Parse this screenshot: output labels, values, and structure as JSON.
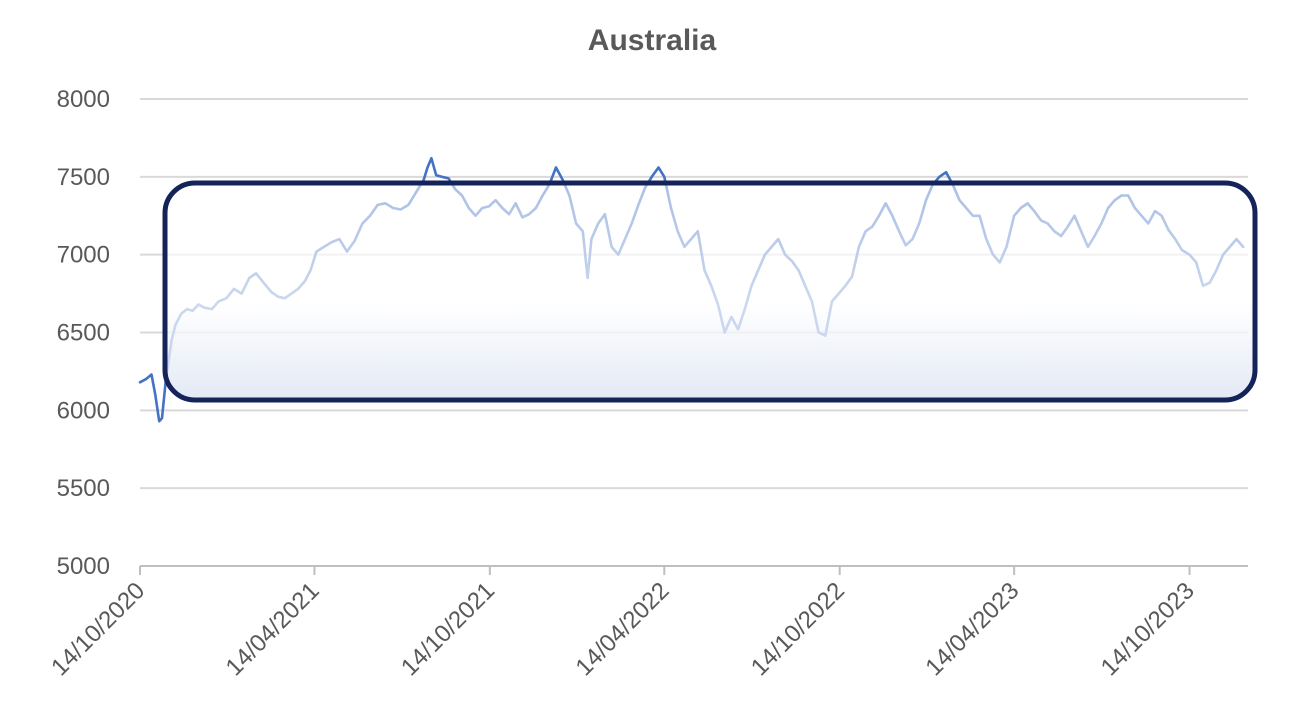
{
  "chart_data": {
    "type": "line",
    "title": "Australia",
    "xlabel": "",
    "ylabel": "",
    "ylim": [
      5000,
      8000
    ],
    "xlim": [
      "14/10/2020",
      "14/12/2023"
    ],
    "y_ticks": [
      "5000",
      "5500",
      "6000",
      "6500",
      "7000",
      "7500",
      "8000"
    ],
    "x_ticks": [
      "14/10/2020",
      "14/04/2021",
      "14/10/2021",
      "14/04/2022",
      "14/10/2022",
      "14/04/2023",
      "14/10/2023"
    ],
    "grid": true,
    "legend": "none",
    "series": [
      {
        "color": "#4472c4",
        "x": [
          "14/10/2020",
          "20/10/2020",
          "26/10/2020",
          "30/10/2020",
          "03/11/2020",
          "06/11/2020",
          "10/11/2020",
          "16/11/2020",
          "20/11/2020",
          "26/11/2020",
          "02/12/2020",
          "08/12/2020",
          "14/12/2020",
          "20/12/2020",
          "28/12/2020",
          "04/01/2021",
          "12/01/2021",
          "20/01/2021",
          "28/01/2021",
          "05/02/2021",
          "12/02/2021",
          "20/02/2021",
          "28/02/2021",
          "07/03/2021",
          "14/03/2021",
          "21/03/2021",
          "28/03/2021",
          "04/04/2021",
          "10/04/2021",
          "16/04/2021",
          "24/04/2021",
          "02/05/2021",
          "10/05/2021",
          "18/05/2021",
          "26/05/2021",
          "03/06/2021",
          "11/06/2021",
          "19/06/2021",
          "27/06/2021",
          "05/07/2021",
          "13/07/2021",
          "21/07/2021",
          "29/07/2021",
          "06/08/2021",
          "10/08/2021",
          "14/08/2021",
          "19/08/2021",
          "25/08/2021",
          "01/09/2021",
          "08/09/2021",
          "15/09/2021",
          "22/09/2021",
          "29/09/2021",
          "06/10/2021",
          "13/10/2021",
          "20/10/2021",
          "27/10/2021",
          "03/11/2021",
          "10/11/2021",
          "17/11/2021",
          "24/11/2021",
          "01/12/2021",
          "08/12/2021",
          "15/12/2021",
          "22/12/2021",
          "29/12/2021",
          "05/01/2022",
          "12/01/2022",
          "19/01/2022",
          "24/01/2022",
          "28/01/2022",
          "04/02/2022",
          "11/02/2022",
          "18/02/2022",
          "25/02/2022",
          "04/03/2022",
          "11/03/2022",
          "18/03/2022",
          "25/03/2022",
          "01/04/2022",
          "08/04/2022",
          "14/04/2022",
          "21/04/2022",
          "28/04/2022",
          "05/05/2022",
          "12/05/2022",
          "19/05/2022",
          "26/05/2022",
          "02/06/2022",
          "09/06/2022",
          "16/06/2022",
          "23/06/2022",
          "30/06/2022",
          "07/07/2022",
          "14/07/2022",
          "21/07/2022",
          "28/07/2022",
          "04/08/2022",
          "11/08/2022",
          "18/08/2022",
          "25/08/2022",
          "01/09/2022",
          "08/09/2022",
          "15/09/2022",
          "22/09/2022",
          "29/09/2022",
          "06/10/2022",
          "13/10/2022",
          "20/10/2022",
          "27/10/2022",
          "03/11/2022",
          "10/11/2022",
          "17/11/2022",
          "24/11/2022",
          "01/12/2022",
          "08/12/2022",
          "15/12/2022",
          "22/12/2022",
          "29/12/2022",
          "05/01/2023",
          "12/01/2023",
          "19/01/2023",
          "26/01/2023",
          "02/02/2023",
          "09/02/2023",
          "16/02/2023",
          "23/02/2023",
          "02/03/2023",
          "09/03/2023",
          "16/03/2023",
          "23/03/2023",
          "30/03/2023",
          "06/04/2023",
          "14/04/2023",
          "21/04/2023",
          "28/04/2023",
          "05/05/2023",
          "12/05/2023",
          "19/05/2023",
          "26/05/2023",
          "02/06/2023",
          "09/06/2023",
          "16/06/2023",
          "23/06/2023",
          "30/06/2023",
          "07/07/2023",
          "14/07/2023",
          "21/07/2023",
          "28/07/2023",
          "04/08/2023",
          "11/08/2023",
          "18/08/2023",
          "25/08/2023",
          "01/09/2023",
          "08/09/2023",
          "15/09/2023",
          "22/09/2023",
          "29/09/2023",
          "06/10/2023",
          "14/10/2023",
          "21/10/2023",
          "28/10/2023",
          "04/11/2023",
          "11/11/2023",
          "18/11/2023",
          "25/11/2023",
          "02/12/2023",
          "09/12/2023"
        ],
        "y": [
          6180,
          6200,
          6230,
          6100,
          5930,
          5950,
          6200,
          6450,
          6550,
          6620,
          6650,
          6640,
          6680,
          6660,
          6650,
          6700,
          6720,
          6780,
          6750,
          6850,
          6880,
          6820,
          6760,
          6730,
          6720,
          6750,
          6780,
          6830,
          6900,
          7020,
          7050,
          7080,
          7100,
          7020,
          7090,
          7200,
          7250,
          7320,
          7330,
          7300,
          7290,
          7320,
          7400,
          7480,
          7560,
          7620,
          7510,
          7500,
          7490,
          7420,
          7380,
          7300,
          7250,
          7300,
          7310,
          7350,
          7300,
          7260,
          7330,
          7240,
          7260,
          7300,
          7380,
          7450,
          7560,
          7480,
          7380,
          7200,
          7150,
          6850,
          7100,
          7200,
          7260,
          7050,
          7000,
          7100,
          7200,
          7320,
          7430,
          7500,
          7560,
          7500,
          7300,
          7150,
          7050,
          7100,
          7150,
          6900,
          6800,
          6680,
          6500,
          6600,
          6520,
          6650,
          6800,
          6900,
          7000,
          7050,
          7100,
          7000,
          6960,
          6900,
          6800,
          6700,
          6500,
          6480,
          6700,
          6750,
          6800,
          6860,
          7050,
          7150,
          7180,
          7250,
          7330,
          7250,
          7150,
          7060,
          7100,
          7200,
          7350,
          7450,
          7500,
          7530,
          7450,
          7350,
          7300,
          7250,
          7250,
          7100,
          7000,
          6950,
          7050,
          7250,
          7300,
          7330,
          7280,
          7220,
          7200,
          7150,
          7120,
          7180,
          7250,
          7150,
          7050,
          7120,
          7200,
          7300,
          7350,
          7380,
          7380,
          7300,
          7250,
          7200,
          7280,
          7250,
          7160,
          7100,
          7030,
          7000,
          6950,
          6800,
          6820,
          6900,
          7000,
          7050,
          7100,
          7050
        ]
      }
    ]
  }
}
